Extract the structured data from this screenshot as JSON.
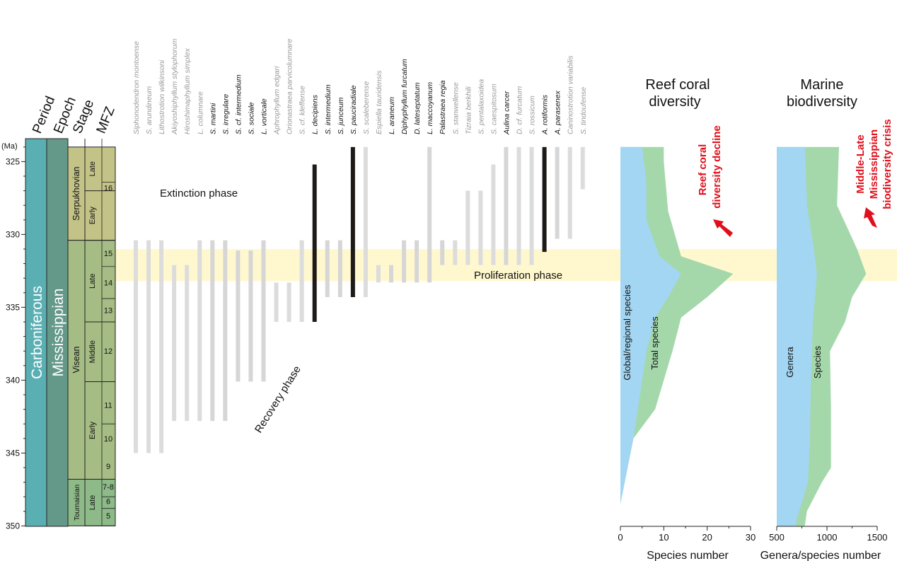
{
  "chart_data": {
    "type": "range",
    "time_axis": {
      "unit_label": "(Ma)",
      "ticks": [
        "325",
        "330",
        "335",
        "340",
        "345",
        "350"
      ],
      "tick_values": [
        325,
        330,
        335,
        340,
        345,
        350
      ],
      "range_ma": [
        324,
        350
      ]
    },
    "strat_headers": [
      "Period",
      "Epoch",
      "Stage",
      "MFZ"
    ],
    "period": "Carboniferous",
    "epoch": "Mississippian",
    "stages": [
      {
        "label": "Serpukhovian",
        "top": 324,
        "base": 330.4,
        "fill": "#c3c287"
      },
      {
        "label": "Visean",
        "top": 330.4,
        "base": 346.8,
        "fill": "#a5bc84"
      },
      {
        "label": "Tournaisian",
        "top": 346.8,
        "base": 350,
        "fill": "#8dba88"
      }
    ],
    "subdivisions": [
      {
        "label": "Late",
        "top": 324,
        "base": 327
      },
      {
        "label": "Early",
        "top": 327,
        "base": 330.4
      },
      {
        "label": "Late",
        "top": 330.4,
        "base": 336
      },
      {
        "label": "Middle",
        "top": 336,
        "base": 340.1
      },
      {
        "label": "Early",
        "top": 340.1,
        "base": 346.8
      },
      {
        "label": "Late",
        "top": 346.8,
        "base": 350
      }
    ],
    "mfz": [
      {
        "label": "16",
        "at": 326.8
      },
      {
        "label": "15",
        "at": 331.3
      },
      {
        "label": "14",
        "at": 333.3
      },
      {
        "label": "13",
        "at": 335.2
      },
      {
        "label": "12",
        "at": 338.0
      },
      {
        "label": "11",
        "at": 341.7
      },
      {
        "label": "10",
        "at": 344.0
      },
      {
        "label": "9",
        "at": 345.9
      },
      {
        "label": "7-8",
        "at": 347.3
      },
      {
        "label": "6",
        "at": 348.3
      },
      {
        "label": "5",
        "at": 349.3
      }
    ],
    "proliferation_band": [
      331.0,
      333.2
    ],
    "taxa": [
      {
        "name": "Siphonodendron montoense",
        "start": 330.4,
        "end": 345.0,
        "style": "regional"
      },
      {
        "name": "S. arundineum",
        "start": 330.4,
        "end": 345.0,
        "style": "regional"
      },
      {
        "name": "Lithostrotion wilkinsoni",
        "start": 330.4,
        "end": 345.0,
        "style": "regional"
      },
      {
        "name": "Akiyoshiphyllum stylophorum",
        "start": 332.1,
        "end": 342.8,
        "style": "regional"
      },
      {
        "name": "Hiroshimaphyllum simplex",
        "start": 332.1,
        "end": 342.8,
        "style": "regional"
      },
      {
        "name": "L. columnare",
        "start": 330.4,
        "end": 342.8,
        "style": "regional"
      },
      {
        "name": "S. martini",
        "start": 330.4,
        "end": 342.8,
        "style": "global"
      },
      {
        "name": "S. irregulare",
        "start": 330.4,
        "end": 342.8,
        "style": "global"
      },
      {
        "name": "S. cf. intermedium",
        "start": 331.1,
        "end": 340.1,
        "style": "global"
      },
      {
        "name": "S. sociale",
        "start": 331.1,
        "end": 340.1,
        "style": "global"
      },
      {
        "name": "L. vorticale",
        "start": 330.4,
        "end": 340.1,
        "style": "global"
      },
      {
        "name": "Aphrophyllum edgari",
        "start": 333.3,
        "end": 336.0,
        "style": "regional"
      },
      {
        "name": "Orionastraea parvicolumnare",
        "start": 333.3,
        "end": 336.0,
        "style": "regional"
      },
      {
        "name": "S. cf. kleffense",
        "start": 330.4,
        "end": 336.0,
        "style": "regional"
      },
      {
        "name": "L. decipiens",
        "start": 325.2,
        "end": 336.0,
        "style": "highlight"
      },
      {
        "name": "S. intermedium",
        "start": 330.4,
        "end": 334.3,
        "style": "global"
      },
      {
        "name": "S. junceum",
        "start": 330.4,
        "end": 334.3,
        "style": "global"
      },
      {
        "name": "S. pauciradiale",
        "start": 324.0,
        "end": 334.3,
        "style": "highlight"
      },
      {
        "name": "S. scaleberense",
        "start": 324.0,
        "end": 334.3,
        "style": "regional"
      },
      {
        "name": "Espiella tauridensis",
        "start": 332.1,
        "end": 333.3,
        "style": "regional"
      },
      {
        "name": "L. araneum",
        "start": 332.1,
        "end": 333.3,
        "style": "global"
      },
      {
        "name": "Diphyphyllum furcatum",
        "start": 330.4,
        "end": 333.3,
        "style": "global"
      },
      {
        "name": "D. lateseptatum",
        "start": 330.4,
        "end": 333.3,
        "style": "global"
      },
      {
        "name": "L. maccoyanum",
        "start": 324.0,
        "end": 333.3,
        "style": "global"
      },
      {
        "name": "Palastraea regia",
        "start": 330.4,
        "end": 332.1,
        "style": "global"
      },
      {
        "name": "S. stanwellense",
        "start": 330.4,
        "end": 332.1,
        "style": "regional"
      },
      {
        "name": "Tizraia berkhili",
        "start": 327.0,
        "end": 332.1,
        "style": "regional"
      },
      {
        "name": "S. pentalaxoidea",
        "start": 327.0,
        "end": 332.1,
        "style": "regional"
      },
      {
        "name": "S. caespitosum",
        "start": 325.2,
        "end": 332.1,
        "style": "regional"
      },
      {
        "name": "Aulina carcer",
        "start": 324.0,
        "end": 332.1,
        "style": "global"
      },
      {
        "name": "D. cf. furcatum",
        "start": 324.0,
        "end": 332.1,
        "style": "regional"
      },
      {
        "name": "S. rossicum",
        "start": 324.0,
        "end": 332.1,
        "style": "regional"
      },
      {
        "name": "A. rotiformis",
        "start": 324.0,
        "end": 331.2,
        "style": "highlight"
      },
      {
        "name": "A. parasenex",
        "start": 324.0,
        "end": 330.3,
        "style": "global"
      },
      {
        "name": "Caninostrotion variabilis",
        "start": 324.0,
        "end": 330.3,
        "style": "regional"
      },
      {
        "name": "S. tindoufense",
        "start": 324.0,
        "end": 326.9,
        "style": "regional"
      }
    ],
    "phase_labels": [
      "Extinction phase",
      "Proliferation phase",
      "Recovery phase"
    ],
    "reef_coral": {
      "title": [
        "Reef coral",
        "diversity"
      ],
      "xlabel": "Species number",
      "xlim": [
        0,
        30
      ],
      "ticks": [
        "0",
        "10",
        "20",
        "30"
      ],
      "tick_values": [
        0,
        10,
        20,
        30
      ],
      "series": [
        {
          "name": "Global/regional species",
          "points": [
            [
              5,
              324
            ],
            [
              6,
              326.5
            ],
            [
              6,
              329
            ],
            [
              9,
              331.5
            ],
            [
              14,
              332.7
            ],
            [
              11,
              334.3
            ],
            [
              8,
              335.7
            ],
            [
              6,
              338
            ],
            [
              5,
              340
            ],
            [
              4,
              342
            ],
            [
              3,
              344
            ],
            [
              1,
              347
            ],
            [
              0,
              348.5
            ],
            [
              0,
              350
            ]
          ]
        },
        {
          "name": "Total species",
          "points": [
            [
              10,
              324
            ],
            [
              10,
              325
            ],
            [
              11,
              328.4
            ],
            [
              14,
              331.5
            ],
            [
              26,
              332.7
            ],
            [
              20,
              334.3
            ],
            [
              14,
              335.7
            ],
            [
              12,
              338
            ],
            [
              10,
              340
            ],
            [
              8,
              342
            ],
            [
              3,
              344
            ],
            [
              1,
              347
            ],
            [
              0,
              348.5
            ],
            [
              0,
              350
            ]
          ]
        }
      ],
      "annotation": [
        "Reef coral",
        "diversity decline"
      ]
    },
    "marine": {
      "title": [
        "Marine",
        "biodiversity"
      ],
      "xlabel": "Genera/species number",
      "xlim": [
        500,
        1500
      ],
      "ticks": [
        "500",
        "1000",
        "1500"
      ],
      "tick_values": [
        500,
        1000,
        1500
      ],
      "series": [
        {
          "name": "Genera",
          "points": [
            [
              780,
              324
            ],
            [
              800,
              328
            ],
            [
              870,
              331
            ],
            [
              900,
              332.7
            ],
            [
              880,
              334.3
            ],
            [
              860,
              336
            ],
            [
              840,
              340
            ],
            [
              830,
              344
            ],
            [
              810,
              347
            ],
            [
              700,
              349.5
            ],
            [
              690,
              350
            ]
          ]
        },
        {
          "name": "Species",
          "points": [
            [
              1120,
              324
            ],
            [
              1100,
              328
            ],
            [
              1300,
              331
            ],
            [
              1390,
              332.7
            ],
            [
              1250,
              334.3
            ],
            [
              1180,
              336
            ],
            [
              1030,
              338
            ],
            [
              1040,
              342
            ],
            [
              1040,
              346
            ],
            [
              950,
              347
            ],
            [
              800,
              349
            ],
            [
              780,
              350
            ]
          ]
        }
      ],
      "annotation": [
        "Middle-Late",
        "Mississippian",
        "biodiversity crisis"
      ]
    },
    "colors": {
      "regional": "#dcdcdc",
      "global": "#d6d6d6",
      "highlight": "#1e1a17",
      "band": "#fff8cf",
      "blue_area": "#a3d6f3",
      "green_area": "#a4d8ab",
      "period_fill": "#5aafb3",
      "epoch_fill": "#64998a",
      "annotation": "#e00f1c"
    }
  }
}
